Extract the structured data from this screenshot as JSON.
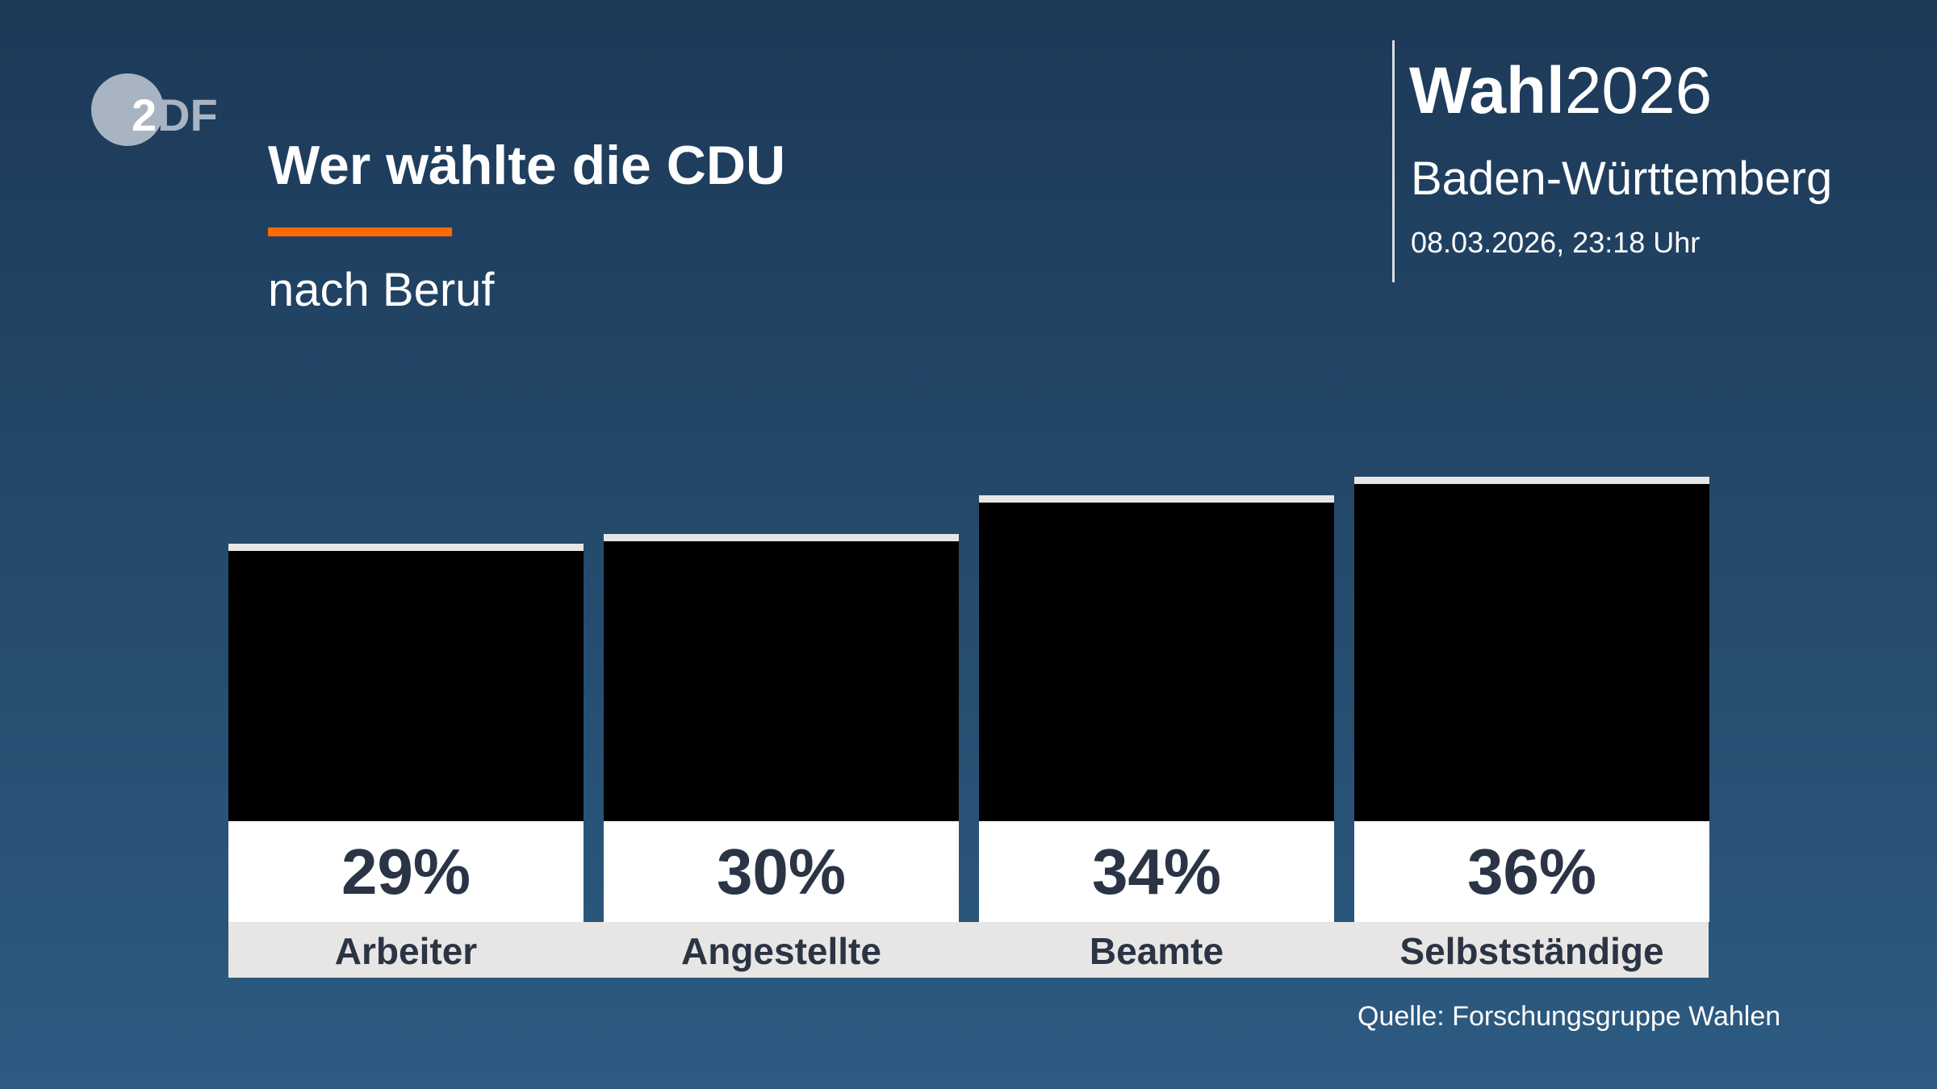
{
  "logo": {
    "text": "ZDF",
    "color": "#a9b4c2"
  },
  "title": "Wer wählte die CDU",
  "subtitle": "nach Beruf",
  "accent_color": "#ff6a00",
  "header": {
    "brand_bold": "Wahl",
    "brand_year": "2026",
    "region": "Baden-Württemberg",
    "date": "08.03.2026, 23:18 Uhr"
  },
  "source": "Quelle: Forschungsgruppe Wahlen",
  "chart_data": {
    "type": "bar",
    "title": "Wer wählte die CDU",
    "subtitle": "nach Beruf",
    "categories": [
      "Arbeiter",
      "Angestellte",
      "Beamte",
      "Selbstständige"
    ],
    "values": [
      29,
      30,
      34,
      36
    ],
    "value_labels": [
      "29%",
      "30%",
      "34%",
      "36%"
    ],
    "unit": "%",
    "grid": false,
    "bar_color": "#000000"
  }
}
